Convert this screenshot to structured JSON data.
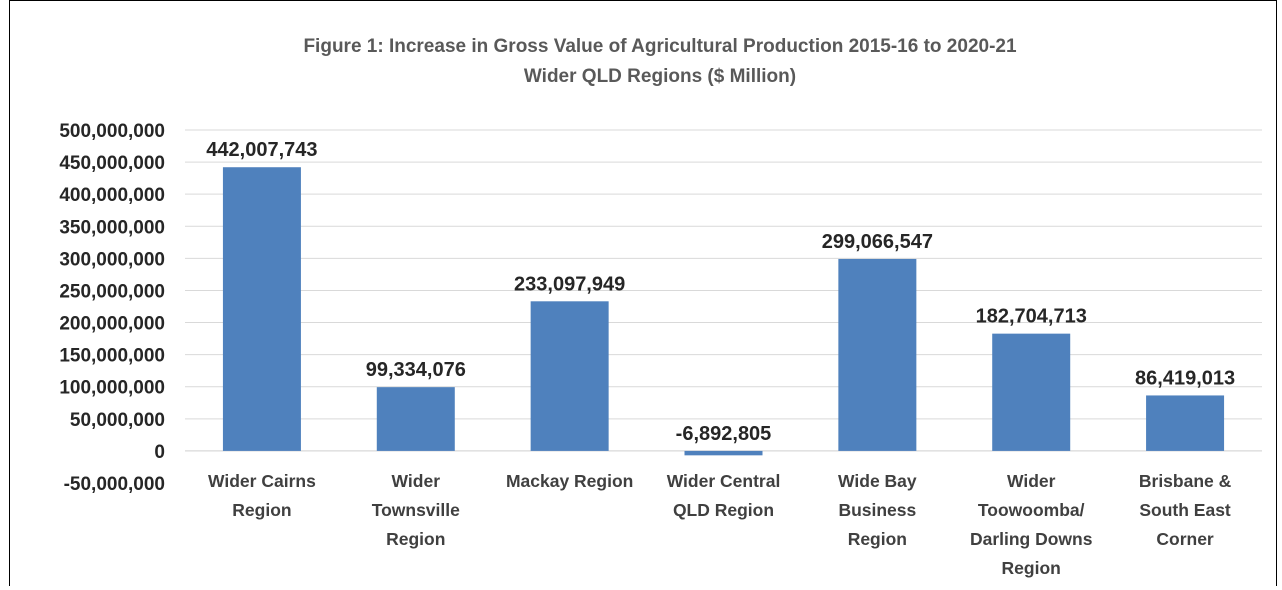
{
  "chart_data": {
    "type": "bar",
    "title": "Figure 1: Increase in Gross Value of Agricultural Production 2015-16 to 2020-21",
    "subtitle": "Wider QLD Regions ($ Million)",
    "categories": [
      [
        "Wider Cairns",
        "Region"
      ],
      [
        "Wider",
        "Townsville",
        "Region"
      ],
      [
        "Mackay Region"
      ],
      [
        "Wider Central",
        "QLD Region"
      ],
      [
        "Wide Bay",
        "Business",
        "Region"
      ],
      [
        "Wider",
        "Toowoomba/",
        "Darling Downs",
        "Region"
      ],
      [
        "Brisbane &",
        "South East",
        "Corner"
      ]
    ],
    "values": [
      442007743,
      99334076,
      233097949,
      -6892805,
      299066547,
      182704713,
      86419013
    ],
    "data_labels": [
      "442,007,743",
      "99,334,076",
      "233,097,949",
      "-6,892,805",
      "299,066,547",
      "182,704,713",
      "86,419,013"
    ],
    "yticks": [
      -50000000,
      0,
      50000000,
      100000000,
      150000000,
      200000000,
      250000000,
      300000000,
      350000000,
      400000000,
      450000000,
      500000000
    ],
    "ytick_labels": [
      "-50,000,000",
      "0",
      "50,000,000",
      "100,000,000",
      "150,000,000",
      "200,000,000",
      "250,000,000",
      "300,000,000",
      "350,000,000",
      "400,000,000",
      "450,000,000",
      "500,000,000"
    ],
    "ylim": [
      -50000000,
      500000000
    ],
    "grid": true,
    "bar_color": "#4f81bd"
  }
}
